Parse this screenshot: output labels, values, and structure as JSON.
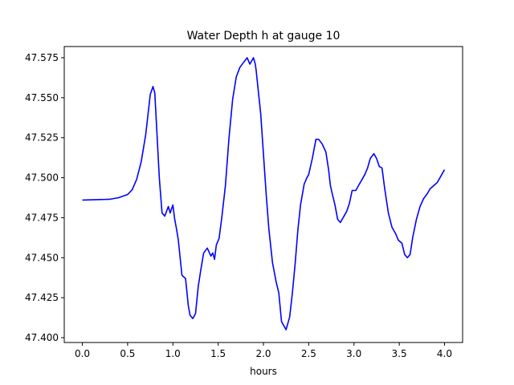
{
  "chart_data": {
    "type": "line",
    "title": "Water Depth h at gauge 10",
    "xlabel": "hours",
    "ylabel": "",
    "xlim": [
      -0.2,
      4.2
    ],
    "ylim": [
      47.397,
      47.582
    ],
    "x_ticks": [
      0.0,
      0.5,
      1.0,
      1.5,
      2.0,
      2.5,
      3.0,
      3.5,
      4.0
    ],
    "x_tick_labels": [
      "0.0",
      "0.5",
      "1.0",
      "1.5",
      "2.0",
      "2.5",
      "3.0",
      "3.5",
      "4.0"
    ],
    "y_ticks": [
      47.4,
      47.425,
      47.45,
      47.475,
      47.5,
      47.525,
      47.55,
      47.575
    ],
    "y_tick_labels": [
      "47.400",
      "47.425",
      "47.450",
      "47.475",
      "47.500",
      "47.525",
      "47.550",
      "47.575"
    ],
    "grid": false,
    "series": [
      {
        "color": "#0000ff",
        "x": [
          0.0,
          0.3,
          0.4,
          0.5,
          0.55,
          0.6,
          0.65,
          0.7,
          0.73,
          0.75,
          0.78,
          0.8,
          0.82,
          0.85,
          0.88,
          0.91,
          0.95,
          0.97,
          1.0,
          1.02,
          1.04,
          1.06,
          1.08,
          1.1,
          1.14,
          1.17,
          1.19,
          1.22,
          1.25,
          1.28,
          1.31,
          1.34,
          1.38,
          1.42,
          1.44,
          1.46,
          1.48,
          1.51,
          1.54,
          1.58,
          1.62,
          1.66,
          1.7,
          1.74,
          1.78,
          1.82,
          1.85,
          1.89,
          1.91,
          1.92,
          1.94,
          1.97,
          2.0,
          2.03,
          2.06,
          2.1,
          2.14,
          2.17,
          2.2,
          2.25,
          2.29,
          2.32,
          2.35,
          2.38,
          2.41,
          2.45,
          2.48,
          2.5,
          2.54,
          2.58,
          2.61,
          2.65,
          2.69,
          2.72,
          2.74,
          2.76,
          2.79,
          2.82,
          2.85,
          2.89,
          2.92,
          2.95,
          2.98,
          3.02,
          3.06,
          3.09,
          3.12,
          3.15,
          3.18,
          3.22,
          3.25,
          3.28,
          3.31,
          3.34,
          3.38,
          3.42,
          3.46,
          3.49,
          3.51,
          3.53,
          3.56,
          3.59,
          3.62,
          3.65,
          3.69,
          3.73,
          3.77,
          3.81,
          3.84,
          3.88,
          3.92,
          3.95,
          3.97,
          4.0
        ],
        "y": [
          47.486,
          47.4865,
          47.4875,
          47.4895,
          47.4925,
          47.499,
          47.51,
          47.527,
          47.542,
          47.552,
          47.557,
          47.553,
          47.532,
          47.5,
          47.478,
          47.476,
          47.482,
          47.478,
          47.483,
          47.474,
          47.468,
          47.461,
          47.45,
          47.439,
          47.437,
          47.42,
          47.414,
          47.412,
          47.415,
          47.432,
          47.443,
          47.453,
          47.456,
          47.451,
          47.453,
          47.449,
          47.458,
          47.462,
          47.475,
          47.495,
          47.525,
          47.549,
          47.563,
          47.569,
          47.572,
          47.575,
          47.571,
          47.575,
          47.571,
          47.567,
          47.556,
          47.54,
          47.515,
          47.49,
          47.468,
          47.447,
          47.435,
          47.428,
          47.41,
          47.405,
          47.413,
          47.428,
          47.446,
          47.467,
          47.483,
          47.496,
          47.5,
          47.502,
          47.512,
          47.524,
          47.524,
          47.521,
          47.516,
          47.505,
          47.495,
          47.49,
          47.483,
          47.474,
          47.472,
          47.476,
          47.479,
          47.484,
          47.492,
          47.492,
          47.496,
          47.499,
          47.502,
          47.506,
          47.512,
          47.515,
          47.512,
          47.507,
          47.506,
          47.493,
          47.478,
          47.469,
          47.465,
          47.461,
          47.46,
          47.459,
          47.452,
          47.45,
          47.452,
          47.463,
          47.474,
          47.482,
          47.487,
          47.49,
          47.493,
          47.495,
          47.497,
          47.5,
          47.502,
          47.505
        ]
      }
    ]
  }
}
